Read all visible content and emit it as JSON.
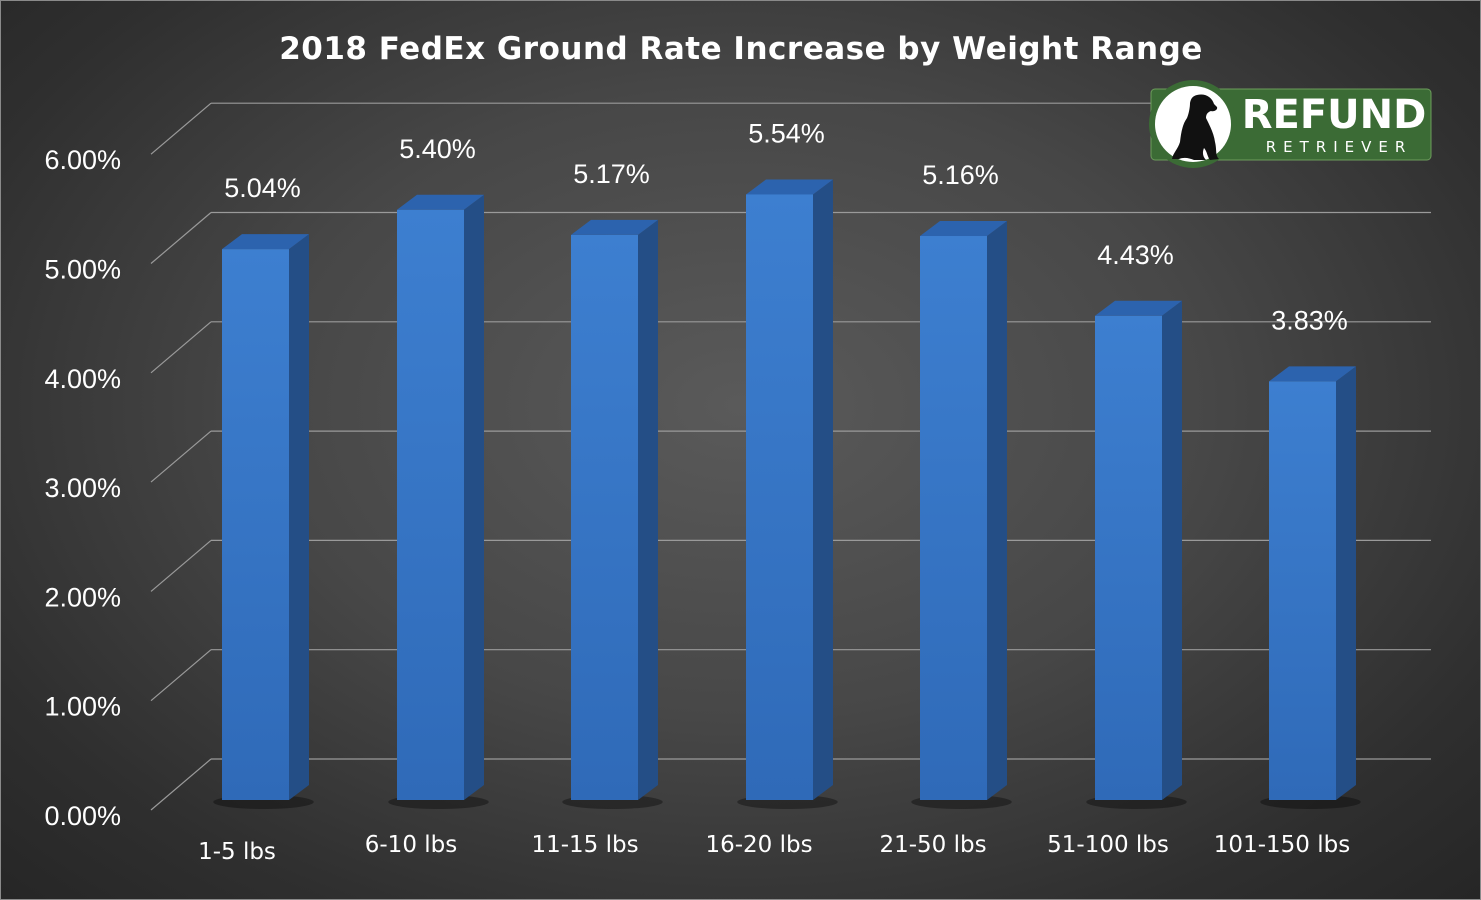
{
  "chart_data": {
    "type": "bar",
    "title": "2018 FedEx Ground Rate Increase by Weight Range",
    "categories": [
      "1-5 lbs",
      "6-10 lbs",
      "11-15 lbs",
      "16-20 lbs",
      "21-50 lbs",
      "51-100 lbs",
      "101-150 lbs"
    ],
    "values": [
      5.04,
      5.4,
      5.17,
      5.54,
      5.16,
      4.43,
      3.83
    ],
    "data_labels": [
      "5.04%",
      "5.40%",
      "5.17%",
      "5.54%",
      "5.16%",
      "4.43%",
      "3.83%"
    ],
    "yticks": [
      "0.00%",
      "1.00%",
      "2.00%",
      "3.00%",
      "4.00%",
      "5.00%",
      "6.00%"
    ],
    "ylim": [
      0,
      6
    ],
    "unit": "%",
    "grid": true,
    "style": "3d-column",
    "colors": {
      "bar_front": "#3a7ccc",
      "bar_side": "#244e86",
      "bar_top": "#2c63ae",
      "background": "#474747",
      "grid": "#9a9a9a"
    }
  },
  "logo": {
    "name": "dog-silhouette-icon",
    "word": "REFUND",
    "subword": "RETRIEVER",
    "color": "#3b6b35"
  }
}
